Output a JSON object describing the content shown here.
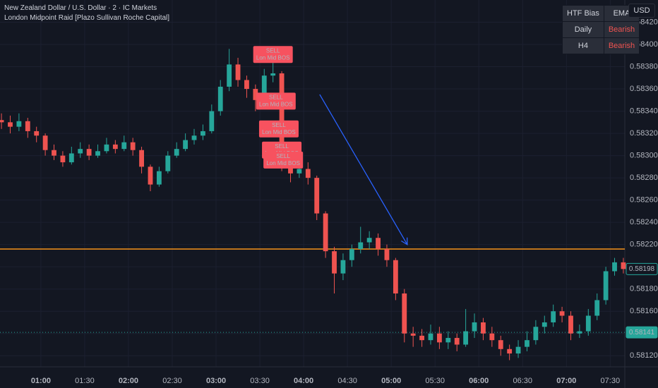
{
  "chart_data": {
    "type": "candlestick",
    "title": "New Zealand Dollar / U.S. Dollar · 2 · IC Markets",
    "subtitle": "London Midpoint Raid [Plazo Sullivan Roche Capital]",
    "currency": "USD",
    "up_color": "#26a69a",
    "down_color": "#ef5350",
    "grid": true,
    "x": [
      33,
      39,
      45,
      51,
      57,
      63,
      69,
      75,
      81,
      87,
      93,
      99,
      105,
      111,
      117,
      123,
      129,
      135,
      141,
      147,
      153,
      159,
      165,
      171,
      177,
      183,
      189,
      195,
      201,
      207,
      213,
      219,
      225,
      231,
      237,
      243,
      249,
      255,
      261,
      267,
      273,
      279,
      285,
      291,
      297,
      303,
      309,
      315,
      321,
      327,
      333,
      339,
      345,
      351,
      357,
      363,
      369,
      375,
      381,
      387,
      393,
      399,
      405,
      411,
      417,
      423,
      429,
      435,
      441,
      447,
      453,
      459
    ],
    "open": [
      0.58332,
      0.5833,
      0.58326,
      0.58331,
      0.58322,
      0.58318,
      0.58305,
      0.583,
      0.58294,
      0.58302,
      0.58306,
      0.583,
      0.58304,
      0.5831,
      0.58306,
      0.58312,
      0.58305,
      0.5829,
      0.58274,
      0.58286,
      0.583,
      0.58306,
      0.58314,
      0.58318,
      0.58322,
      0.5834,
      0.58362,
      0.58382,
      0.58368,
      0.5836,
      0.5835,
      0.58372,
      0.58374,
      0.58292,
      0.58284,
      0.58288,
      0.5828,
      0.58248,
      0.58214,
      0.58194,
      0.58206,
      0.58216,
      0.58222,
      0.58226,
      0.58216,
      0.58206,
      0.58176,
      0.5814,
      0.58138,
      0.58134,
      0.5814,
      0.58132,
      0.58136,
      0.5813,
      0.58142,
      0.5815,
      0.5814,
      0.58134,
      0.58126,
      0.58122,
      0.58128,
      0.58134,
      0.58146,
      0.5815,
      0.5816,
      0.58156,
      0.5814,
      0.58142,
      0.58156,
      0.5817,
      0.58196,
      0.58204
    ],
    "high": [
      0.58338,
      0.58336,
      0.58338,
      0.58334,
      0.58326,
      0.5832,
      0.5831,
      0.58304,
      0.58308,
      0.58312,
      0.5831,
      0.5831,
      0.58316,
      0.58314,
      0.58318,
      0.58316,
      0.58308,
      0.58292,
      0.5829,
      0.58304,
      0.58312,
      0.5832,
      0.58324,
      0.58328,
      0.58346,
      0.58368,
      0.58396,
      0.58388,
      0.58372,
      0.58364,
      0.58378,
      0.58384,
      0.58376,
      0.58298,
      0.58296,
      0.58294,
      0.58282,
      0.5825,
      0.58218,
      0.58212,
      0.5822,
      0.58236,
      0.58232,
      0.5823,
      0.5822,
      0.58208,
      0.5818,
      0.58146,
      0.58144,
      0.58148,
      0.58146,
      0.58142,
      0.5814,
      0.58162,
      0.58158,
      0.58154,
      0.58146,
      0.58138,
      0.5813,
      0.58134,
      0.58142,
      0.58152,
      0.58156,
      0.58166,
      0.58164,
      0.5816,
      0.58148,
      0.58162,
      0.58176,
      0.582,
      0.58208,
      0.58208
    ],
    "low": [
      0.58324,
      0.5832,
      0.58322,
      0.58316,
      0.58312,
      0.583,
      0.58296,
      0.5829,
      0.58292,
      0.58298,
      0.58296,
      0.58298,
      0.58302,
      0.58302,
      0.58304,
      0.583,
      0.58284,
      0.58268,
      0.58272,
      0.58284,
      0.58298,
      0.58304,
      0.5831,
      0.58314,
      0.5832,
      0.58336,
      0.58358,
      0.58362,
      0.58352,
      0.5834,
      0.58346,
      0.58366,
      0.58286,
      0.58276,
      0.5828,
      0.58274,
      0.58242,
      0.58208,
      0.58176,
      0.58188,
      0.582,
      0.58212,
      0.58216,
      0.5821,
      0.582,
      0.5817,
      0.58132,
      0.58128,
      0.58128,
      0.5813,
      0.58126,
      0.58126,
      0.58124,
      0.58128,
      0.58136,
      0.58134,
      0.58128,
      0.5812,
      0.58116,
      0.58118,
      0.58124,
      0.5813,
      0.5814,
      0.58146,
      0.5815,
      0.58134,
      0.58136,
      0.58138,
      0.58152,
      0.58166,
      0.58192,
      0.58194
    ],
    "close": [
      0.5833,
      0.58326,
      0.58331,
      0.58322,
      0.58318,
      0.58305,
      0.583,
      0.58294,
      0.58302,
      0.58306,
      0.583,
      0.58304,
      0.5831,
      0.58306,
      0.58312,
      0.58305,
      0.5829,
      0.58274,
      0.58286,
      0.583,
      0.58306,
      0.58314,
      0.58318,
      0.58322,
      0.5834,
      0.58362,
      0.58382,
      0.58368,
      0.5836,
      0.5835,
      0.58372,
      0.58374,
      0.58292,
      0.58284,
      0.58288,
      0.5828,
      0.58248,
      0.58214,
      0.58194,
      0.58206,
      0.58216,
      0.58222,
      0.58226,
      0.58216,
      0.58206,
      0.58176,
      0.5814,
      0.58138,
      0.58134,
      0.5814,
      0.58132,
      0.58136,
      0.5813,
      0.58142,
      0.5815,
      0.5814,
      0.58134,
      0.58126,
      0.58122,
      0.58128,
      0.58134,
      0.58146,
      0.5815,
      0.5816,
      0.58156,
      0.5814,
      0.58142,
      0.58156,
      0.5817,
      0.58196,
      0.58204,
      0.58198
    ],
    "xlim": [
      32,
      460
    ],
    "xticks": [
      {
        "value": 60,
        "label": "01:00"
      },
      {
        "value": 90,
        "label": "01:30"
      },
      {
        "value": 120,
        "label": "02:00"
      },
      {
        "value": 150,
        "label": "02:30"
      },
      {
        "value": 180,
        "label": "03:00"
      },
      {
        "value": 210,
        "label": "03:30"
      },
      {
        "value": 240,
        "label": "04:00"
      },
      {
        "value": 270,
        "label": "04:30"
      },
      {
        "value": 300,
        "label": "05:00"
      },
      {
        "value": 330,
        "label": "05:30"
      },
      {
        "value": 360,
        "label": "06:00"
      },
      {
        "value": 390,
        "label": "06:30"
      },
      {
        "value": 420,
        "label": "07:00"
      },
      {
        "value": 450,
        "label": "07:30"
      }
    ],
    "ylim": [
      0.5811,
      0.5844
    ],
    "yticks": [
      {
        "value": 0.5842,
        "label": "0.58420"
      },
      {
        "value": 0.584,
        "label": "0.58400"
      },
      {
        "value": 0.5838,
        "label": "0.58380"
      },
      {
        "value": 0.5836,
        "label": "0.58360"
      },
      {
        "value": 0.5834,
        "label": "0.58340"
      },
      {
        "value": 0.5832,
        "label": "0.58320"
      },
      {
        "value": 0.583,
        "label": "0.58300"
      },
      {
        "value": 0.5828,
        "label": "0.58280"
      },
      {
        "value": 0.5826,
        "label": "0.58260"
      },
      {
        "value": 0.5824,
        "label": "0.58240"
      },
      {
        "value": 0.5822,
        "label": "0.58220"
      },
      {
        "value": 0.582,
        "label": "0.58200"
      },
      {
        "value": 0.5818,
        "label": "0.58180"
      },
      {
        "value": 0.5816,
        "label": "0.58160"
      },
      {
        "value": 0.5814,
        "label": "0.58140"
      },
      {
        "value": 0.5812,
        "label": "0.58120"
      }
    ],
    "level_line": {
      "value": 0.58216,
      "color": "#f7931a"
    },
    "current_price": 0.58198,
    "dotted_price": 0.58141,
    "arrow": {
      "x": [
        251,
        311
      ],
      "y": [
        0.58355,
        0.5822
      ],
      "color": "#2962ff"
    },
    "signals": [
      {
        "text": "SELL",
        "sub": "Lon Mid BOS",
        "x": 219,
        "y": 0.58391
      },
      {
        "text": "SELL",
        "sub": "Lon Mid BOS",
        "x": 221,
        "y": 0.58349
      },
      {
        "text": "SELL",
        "sub": "Lon Mid BOS",
        "x": 223,
        "y": 0.58324
      },
      {
        "text": "SELL",
        "sub": "Lon Mid BOS",
        "x": 225,
        "y": 0.58305
      },
      {
        "text": "SELL",
        "sub": "Lon Mid BOS",
        "x": 226,
        "y": 0.58296
      }
    ]
  },
  "bias_table": {
    "header": [
      "HTF Bias",
      "EMA"
    ],
    "rows": [
      [
        "Daily",
        "Bearish"
      ],
      [
        "H4",
        "Bearish"
      ]
    ]
  }
}
